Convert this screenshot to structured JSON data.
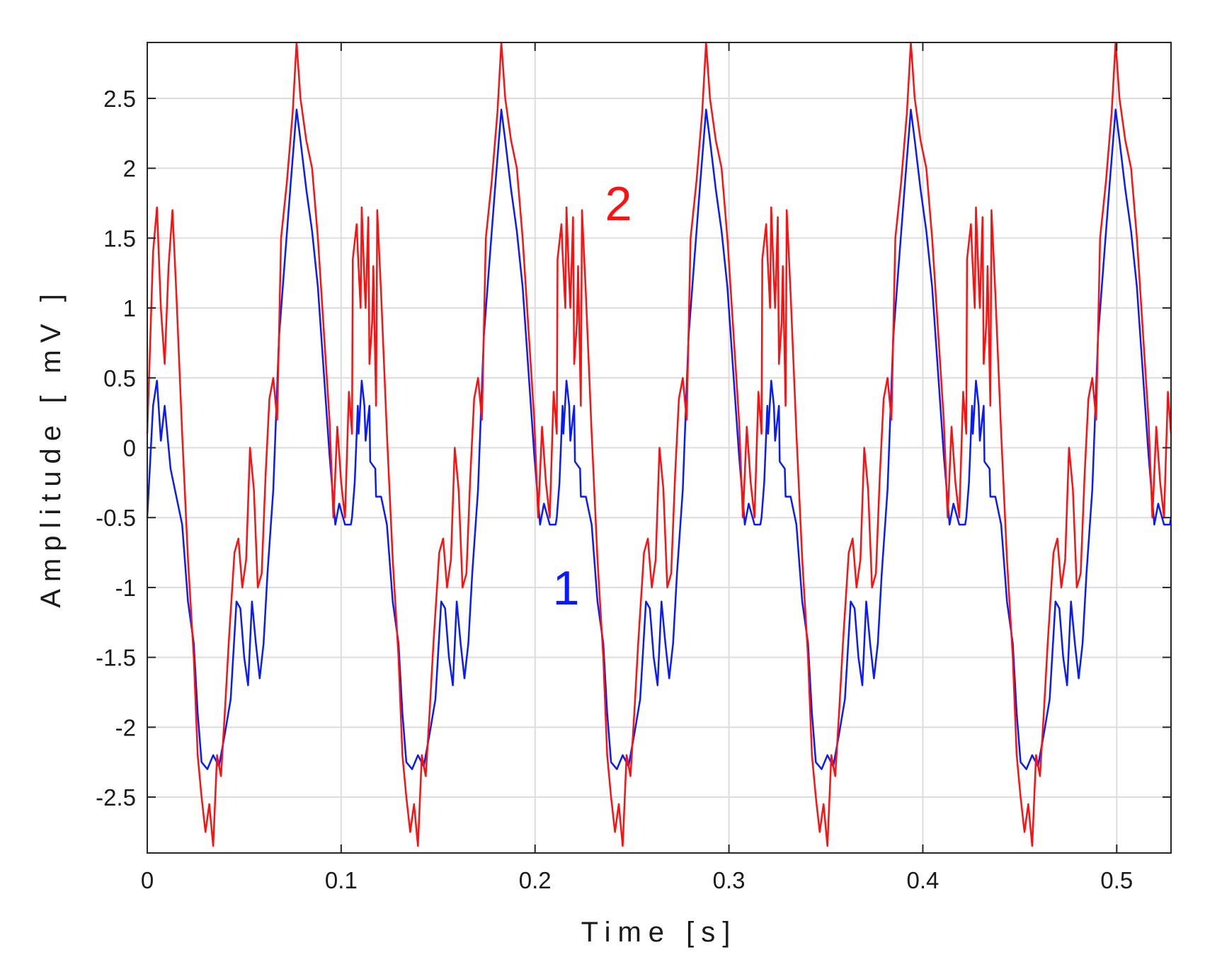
{
  "chart_data": {
    "type": "line",
    "title": "",
    "xlabel": "Time [s]",
    "ylabel": "Amplitude [ mV ]",
    "xlim": [
      0,
      0.528
    ],
    "ylim": [
      -2.9,
      2.9
    ],
    "grid": true,
    "legend": "none",
    "x_ticks": [
      {
        "value": 0,
        "label": "0"
      },
      {
        "value": 0.1,
        "label": "0.1"
      },
      {
        "value": 0.2,
        "label": "0.2"
      },
      {
        "value": 0.3,
        "label": "0.3"
      },
      {
        "value": 0.4,
        "label": "0.4"
      },
      {
        "value": 0.5,
        "label": "0.5"
      }
    ],
    "y_ticks": [
      {
        "value": 2.5,
        "label": "2.5"
      },
      {
        "value": 2,
        "label": "2"
      },
      {
        "value": 1.5,
        "label": "1.5"
      },
      {
        "value": 1,
        "label": "1"
      },
      {
        "value": 0.5,
        "label": "0.5"
      },
      {
        "value": 0,
        "label": "0"
      },
      {
        "value": -0.5,
        "label": "-0.5"
      },
      {
        "value": -1,
        "label": "-1"
      },
      {
        "value": -1.5,
        "label": "-1.5"
      },
      {
        "value": -2,
        "label": "-2"
      },
      {
        "value": -2.5,
        "label": "-2.5"
      }
    ],
    "series": [
      {
        "label": "1",
        "color": "#0a1aff",
        "label_at": {
          "x": 0.216,
          "y": -1.0
        },
        "points": [
          [
            0.0,
            -0.5
          ],
          [
            0.003,
            0.3
          ],
          [
            0.005,
            0.48
          ],
          [
            0.007,
            0.05
          ],
          [
            0.009,
            0.3
          ],
          [
            0.012,
            -0.15
          ],
          [
            0.015,
            -0.35
          ],
          [
            0.018,
            -0.55
          ],
          [
            0.021,
            -1.1
          ],
          [
            0.024,
            -1.4
          ],
          [
            0.026,
            -1.9
          ],
          [
            0.028,
            -2.25
          ],
          [
            0.031,
            -2.3
          ],
          [
            0.034,
            -2.2
          ],
          [
            0.037,
            -2.28
          ],
          [
            0.04,
            -2.05
          ],
          [
            0.043,
            -1.8
          ],
          [
            0.046,
            -1.1
          ],
          [
            0.048,
            -1.15
          ],
          [
            0.05,
            -1.5
          ],
          [
            0.052,
            -1.7
          ],
          [
            0.054,
            -1.1
          ],
          [
            0.056,
            -1.4
          ],
          [
            0.058,
            -1.65
          ],
          [
            0.06,
            -1.4
          ],
          [
            0.062,
            -0.9
          ],
          [
            0.065,
            -0.3
          ],
          [
            0.068,
            0.8
          ],
          [
            0.071,
            1.35
          ],
          [
            0.074,
            1.9
          ],
          [
            0.077,
            2.42
          ],
          [
            0.079,
            2.2
          ],
          [
            0.082,
            1.85
          ],
          [
            0.085,
            1.55
          ],
          [
            0.088,
            1.15
          ],
          [
            0.091,
            0.55
          ],
          [
            0.094,
            -0.05
          ],
          [
            0.097,
            -0.55
          ],
          [
            0.099,
            -0.4
          ],
          [
            0.102,
            -0.55
          ],
          [
            0.105,
            -0.55
          ],
          [
            0.107,
            -0.25
          ],
          [
            0.109,
            0.1
          ],
          [
            0.112,
            0.3
          ],
          [
            0.115,
            -0.1
          ],
          [
            0.118,
            -0.35
          ]
        ]
      },
      {
        "label": "2",
        "color": "#ff1010",
        "label_at": {
          "x": 0.243,
          "y": 1.75
        },
        "points": [
          [
            0.0,
            0.1
          ],
          [
            0.003,
            1.4
          ],
          [
            0.005,
            1.72
          ],
          [
            0.007,
            1.0
          ],
          [
            0.009,
            0.6
          ],
          [
            0.011,
            1.3
          ],
          [
            0.013,
            1.7
          ],
          [
            0.015,
            1.1
          ],
          [
            0.018,
            0.1
          ],
          [
            0.021,
            -0.8
          ],
          [
            0.024,
            -1.5
          ],
          [
            0.026,
            -2.2
          ],
          [
            0.028,
            -2.5
          ],
          [
            0.03,
            -2.75
          ],
          [
            0.032,
            -2.55
          ],
          [
            0.034,
            -2.85
          ],
          [
            0.036,
            -2.2
          ],
          [
            0.038,
            -2.35
          ],
          [
            0.04,
            -1.9
          ],
          [
            0.042,
            -1.4
          ],
          [
            0.045,
            -0.75
          ],
          [
            0.047,
            -0.65
          ],
          [
            0.049,
            -1.0
          ],
          [
            0.051,
            -0.8
          ],
          [
            0.053,
            0.0
          ],
          [
            0.055,
            -0.3
          ],
          [
            0.057,
            -1.0
          ],
          [
            0.059,
            -0.9
          ],
          [
            0.061,
            -0.2
          ],
          [
            0.063,
            0.35
          ],
          [
            0.065,
            0.5
          ],
          [
            0.067,
            0.2
          ],
          [
            0.069,
            1.5
          ],
          [
            0.072,
            1.9
          ],
          [
            0.075,
            2.4
          ],
          [
            0.077,
            2.9
          ],
          [
            0.079,
            2.5
          ],
          [
            0.082,
            2.2
          ],
          [
            0.085,
            2.0
          ],
          [
            0.088,
            1.5
          ],
          [
            0.091,
            0.85
          ],
          [
            0.094,
            0.2
          ],
          [
            0.096,
            -0.5
          ],
          [
            0.098,
            0.15
          ],
          [
            0.1,
            -0.25
          ],
          [
            0.102,
            -0.5
          ],
          [
            0.104,
            0.4
          ],
          [
            0.106,
            1.35
          ],
          [
            0.108,
            1.6
          ],
          [
            0.11,
            1.0
          ],
          [
            0.112,
            1.2
          ],
          [
            0.114,
            1.65
          ],
          [
            0.116,
            0.9
          ],
          [
            0.118,
            0.3
          ]
        ]
      }
    ]
  }
}
